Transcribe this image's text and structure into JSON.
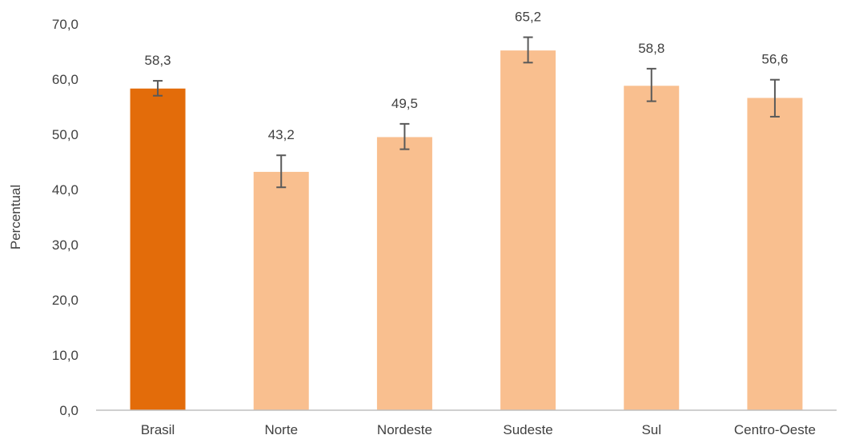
{
  "chart_data": {
    "type": "bar",
    "title": "",
    "xlabel": "",
    "ylabel": "Percentual",
    "ylim": [
      0,
      70
    ],
    "y_ticks": [
      "0,0",
      "10,0",
      "20,0",
      "30,0",
      "40,0",
      "50,0",
      "60,0",
      "70,0"
    ],
    "y_tick_values": [
      0,
      10,
      20,
      30,
      40,
      50,
      60,
      70
    ],
    "categories": [
      "Brasil",
      "Norte",
      "Nordeste",
      "Sudeste",
      "Sul",
      "Centro-Oeste"
    ],
    "values": [
      58.3,
      43.2,
      49.5,
      65.2,
      58.8,
      56.6
    ],
    "value_labels": [
      "58,3",
      "43,2",
      "49,5",
      "65,2",
      "58,8",
      "56,6"
    ],
    "error_low": [
      57.0,
      40.4,
      47.3,
      63.0,
      56.0,
      53.2
    ],
    "error_high": [
      59.7,
      46.2,
      51.9,
      67.6,
      61.9,
      59.9
    ],
    "grid": false,
    "legend": "none",
    "colors": {
      "highlight": "#E36C0A",
      "bar": "#F9BF8F",
      "error_bar": "#595959",
      "axis_line": "#BFBFBF",
      "text": "#404040"
    }
  }
}
